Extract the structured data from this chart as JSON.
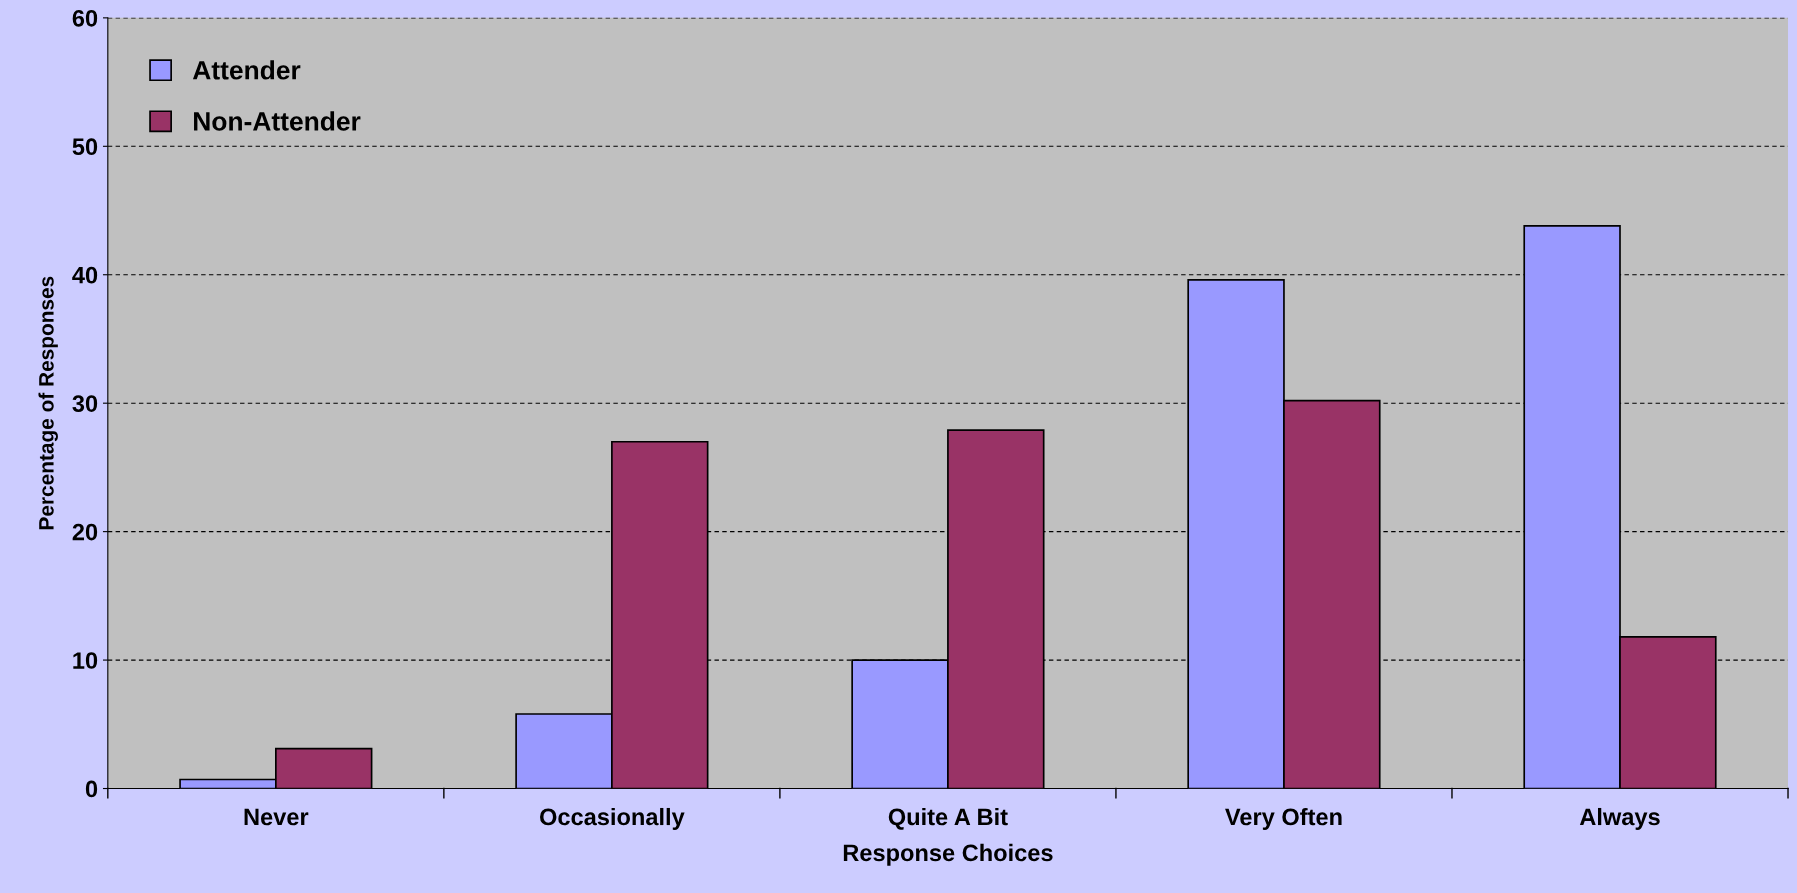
{
  "chart_data": {
    "type": "bar",
    "xlabel": "Response Choices",
    "ylabel": "Percentage of Responses",
    "categories": [
      "Never",
      "Occasionally",
      "Quite A Bit",
      "Very Often",
      "Always"
    ],
    "series": [
      {
        "name": "Attender",
        "color": "#9999ff",
        "values": [
          0.7,
          5.8,
          10.0,
          39.6,
          43.8
        ]
      },
      {
        "name": "Non-Attender",
        "color": "#993366",
        "values": [
          3.1,
          27.0,
          27.9,
          30.2,
          11.8
        ]
      }
    ],
    "ylim": [
      0,
      60
    ],
    "yticks": [
      0,
      10,
      20,
      30,
      40,
      50,
      60
    ],
    "grid": "y",
    "legend": "top left"
  }
}
